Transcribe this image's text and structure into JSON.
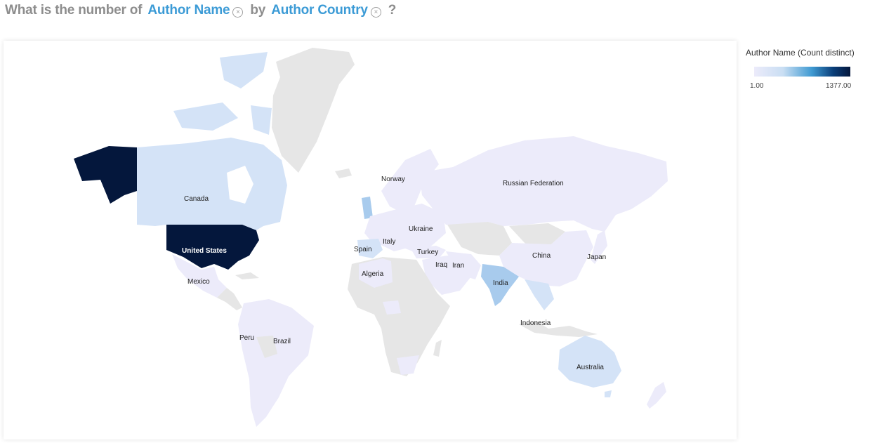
{
  "query": {
    "prefix": "What is the number of",
    "measure": "Author Name",
    "connector": "by",
    "dimension": "Author Country",
    "suffix": "?"
  },
  "legend": {
    "title": "Author Name (Count distinct)",
    "min": "1.00",
    "max": "1377.00"
  },
  "map": {
    "labels": {
      "canada": "Canada",
      "usa": "United States",
      "mexico": "Mexico",
      "peru": "Peru",
      "brazil": "Brazil",
      "norway": "Norway",
      "ukraine": "Ukraine",
      "spain": "Spain",
      "italy": "Italy",
      "turkey": "Turkey",
      "iraq": "Iraq",
      "iran": "Iran",
      "algeria": "Algeria",
      "russia": "Russian Federation",
      "china": "China",
      "japan": "Japan",
      "india": "India",
      "indonesia": "Indonesia",
      "australia": "Australia"
    },
    "colors": {
      "no_data": "#e6e6e6",
      "low": "#ecebfa",
      "low_mid": "#d4e3f7",
      "mid": "#a8cbed",
      "high": "#04173c"
    }
  }
}
